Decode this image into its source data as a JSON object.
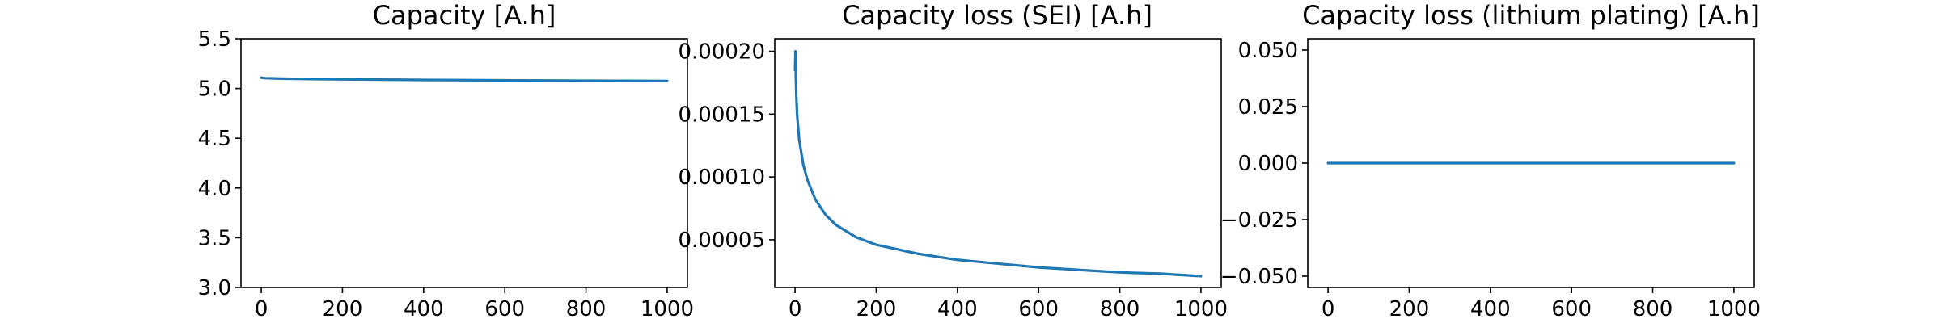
{
  "colors": {
    "line": "#1f77b4",
    "axes": "#000000",
    "background": "#ffffff"
  },
  "chart_data": [
    {
      "type": "line",
      "title": "Capacity [A.h]",
      "xlabel": "",
      "ylabel": "",
      "xlim": [
        -50,
        1050
      ],
      "ylim": [
        3.0,
        5.5
      ],
      "xticks": [
        0,
        200,
        400,
        600,
        800,
        1000
      ],
      "xtick_labels": [
        "0",
        "200",
        "400",
        "600",
        "800",
        "1000"
      ],
      "yticks": [
        3.0,
        3.5,
        4.0,
        4.5,
        5.0,
        5.5
      ],
      "ytick_labels": [
        "3.0",
        "3.5",
        "4.0",
        "4.5",
        "5.0",
        "5.5"
      ],
      "grid": false,
      "series": [
        {
          "x": [
            0,
            1,
            5,
            10,
            25,
            50,
            100,
            200,
            300,
            400,
            500,
            600,
            700,
            800,
            900,
            1000
          ],
          "y": [
            5.11,
            5.108,
            5.106,
            5.104,
            5.102,
            5.099,
            5.096,
            5.092,
            5.089,
            5.086,
            5.084,
            5.082,
            5.08,
            5.078,
            5.077,
            5.075
          ]
        }
      ]
    },
    {
      "type": "line",
      "title": "Capacity loss (SEI) [A.h]",
      "xlabel": "",
      "ylabel": "",
      "xlim": [
        -50,
        1050
      ],
      "ylim": [
        1.2e-05,
        0.00021
      ],
      "xticks": [
        0,
        200,
        400,
        600,
        800,
        1000
      ],
      "xtick_labels": [
        "0",
        "200",
        "400",
        "600",
        "800",
        "1000"
      ],
      "yticks": [
        5e-05,
        0.0001,
        0.00015,
        0.0002
      ],
      "ytick_labels": [
        "0.00005",
        "0.00010",
        "0.00015",
        "0.00020"
      ],
      "grid": false,
      "series": [
        {
          "x": [
            0,
            1,
            2,
            3,
            5,
            10,
            20,
            30,
            50,
            75,
            100,
            150,
            200,
            300,
            400,
            500,
            600,
            700,
            800,
            900,
            1000
          ],
          "y": [
            0.000185,
            0.0002,
            0.00018,
            0.000165,
            0.00015,
            0.00013,
            0.00011,
            9.8e-05,
            8.2e-05,
            7e-05,
            6.2e-05,
            5.2e-05,
            4.6e-05,
            3.9e-05,
            3.4e-05,
            3.1e-05,
            2.8e-05,
            2.6e-05,
            2.4e-05,
            2.3e-05,
            2.1e-05
          ]
        }
      ]
    },
    {
      "type": "line",
      "title": "Capacity loss (lithium plating) [A.h]",
      "xlabel": "",
      "ylabel": "",
      "xlim": [
        -50,
        1050
      ],
      "ylim": [
        -0.055,
        0.055
      ],
      "xticks": [
        0,
        200,
        400,
        600,
        800,
        1000
      ],
      "xtick_labels": [
        "0",
        "200",
        "400",
        "600",
        "800",
        "1000"
      ],
      "yticks": [
        -0.05,
        -0.025,
        0.0,
        0.025,
        0.05
      ],
      "ytick_labels": [
        "−0.050",
        "−0.025",
        "0.000",
        "0.025",
        "0.050"
      ],
      "grid": false,
      "series": [
        {
          "x": [
            0,
            200,
            400,
            600,
            800,
            1000
          ],
          "y": [
            0,
            0,
            0,
            0,
            0,
            0
          ]
        }
      ]
    }
  ]
}
